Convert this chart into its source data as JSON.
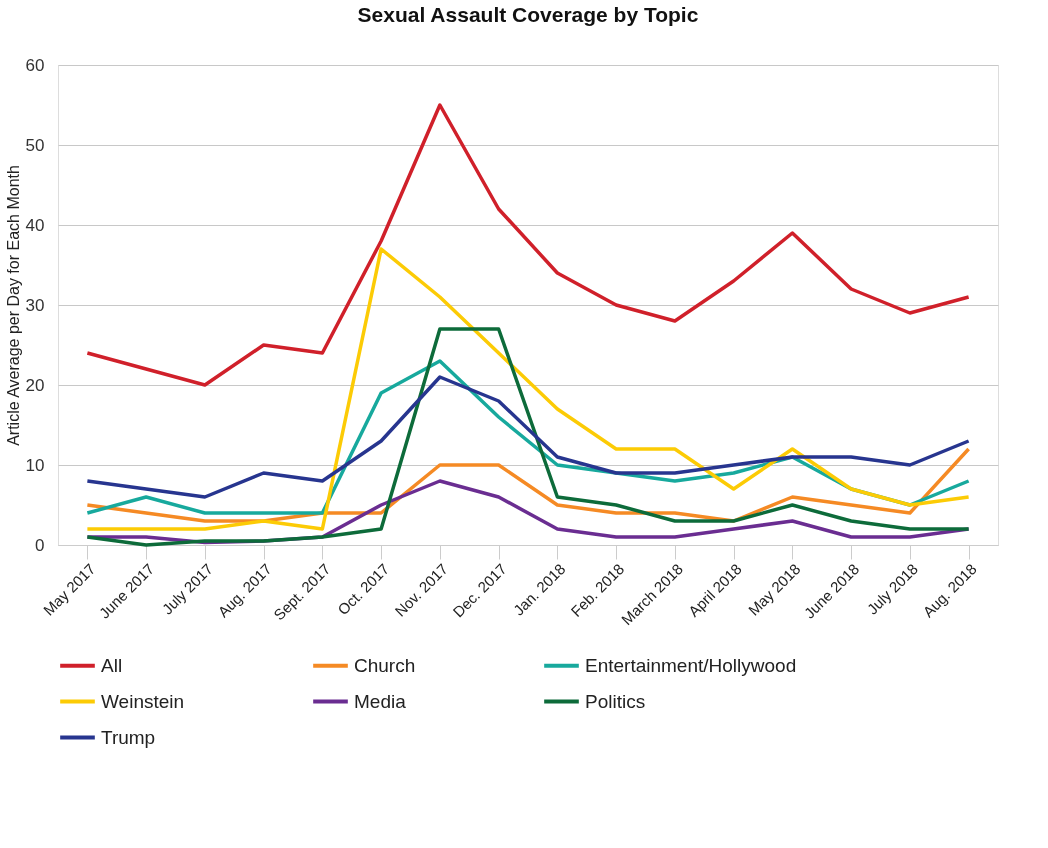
{
  "chart_data": {
    "type": "line",
    "title": "Sexual Assault Coverage by Topic",
    "ylabel": "Article Average per Day for Each Month",
    "categories": [
      "May 2017",
      "June 2017",
      "July 2017",
      "Aug. 2017",
      "Sept. 2017",
      "Oct. 2017",
      "Nov. 2017",
      "Dec. 2017",
      "Jan. 2018",
      "Feb. 2018",
      "March 2018",
      "April 2018",
      "May 2018",
      "June 2018",
      "July 2018",
      "Aug. 2018"
    ],
    "series": [
      {
        "name": "All",
        "color": "#d0202a",
        "values": [
          24,
          22,
          20,
          25,
          24,
          38,
          55,
          42,
          34,
          30,
          28,
          33,
          39,
          32,
          29,
          31
        ]
      },
      {
        "name": "Church",
        "color": "#f58a24",
        "values": [
          5,
          4,
          3,
          3,
          4,
          4,
          10,
          10,
          5,
          4,
          4,
          3,
          6,
          5,
          4,
          12
        ]
      },
      {
        "name": "Entertainment/Hollywood",
        "color": "#17a99d",
        "values": [
          4,
          6,
          4,
          4,
          4,
          19,
          23,
          16,
          10,
          9,
          8,
          9,
          11,
          7,
          5,
          8
        ]
      },
      {
        "name": "Weinstein",
        "color": "#fccb05",
        "values": [
          2,
          2,
          2,
          3,
          2,
          37,
          31,
          24,
          17,
          12,
          12,
          7,
          12,
          7,
          5,
          6
        ]
      },
      {
        "name": "Media",
        "color": "#6a2d91",
        "values": [
          1,
          1,
          0.3,
          0.5,
          1,
          5,
          8,
          6,
          2,
          1,
          1,
          2,
          3,
          1,
          1,
          2
        ]
      },
      {
        "name": "Politics",
        "color": "#0d6b3a",
        "values": [
          1,
          0,
          0.5,
          0.5,
          1,
          2,
          27,
          27,
          6,
          5,
          3,
          3,
          5,
          3,
          2,
          2
        ]
      },
      {
        "name": "Trump",
        "color": "#27358f",
        "values": [
          8,
          7,
          6,
          9,
          8,
          13,
          21,
          18,
          11,
          9,
          9,
          10,
          11,
          11,
          10,
          13
        ]
      }
    ],
    "ylim": [
      0,
      60
    ],
    "yticks": [
      0,
      10,
      20,
      30,
      40,
      50,
      60
    ],
    "grid": "y",
    "legend": "bottom",
    "marker": "none",
    "line_style": "solid"
  }
}
